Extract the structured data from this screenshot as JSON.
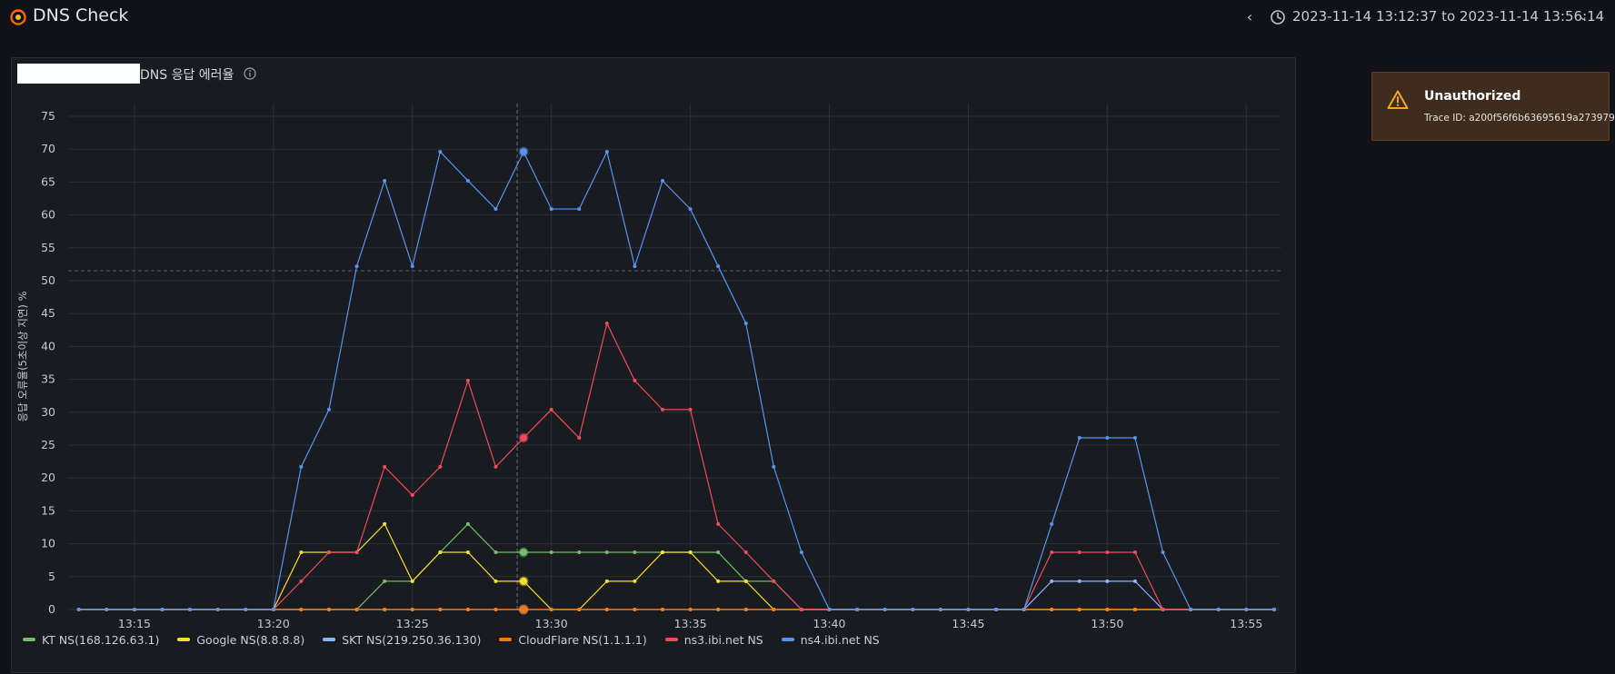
{
  "header": {
    "title": "DNS Check",
    "time_range": "2023-11-14 13:12:37 to 2023-11-14 13:56:14",
    "logo_icon": "grafana-logo",
    "back_icon": "chevron-left-icon",
    "clock_icon": "clock-icon",
    "dropdown_icon": "chevron-down-icon"
  },
  "panel": {
    "title": "DNS 응답 에러율",
    "info_icon": "info-icon"
  },
  "toast": {
    "title": "Unauthorized",
    "trace": "Trace ID: a200f56f6b63695619a273979",
    "icon": "warning-icon",
    "accent": "#f5a623"
  },
  "chart_data": {
    "type": "line",
    "ylabel": "응답 오류율(5초이상 지연) %",
    "ylim": [
      0,
      75
    ],
    "yticks": [
      0,
      5,
      10,
      15,
      20,
      25,
      30,
      35,
      40,
      45,
      50,
      55,
      60,
      65,
      70,
      75
    ],
    "xlim": [
      "13:12:37",
      "13:56:14"
    ],
    "xticks": [
      "13:15",
      "13:20",
      "13:25",
      "13:30",
      "13:35",
      "13:40",
      "13:45",
      "13:50",
      "13:55"
    ],
    "x": [
      "13:13",
      "13:14",
      "13:15",
      "13:16",
      "13:17",
      "13:18",
      "13:19",
      "13:20",
      "13:21",
      "13:22",
      "13:23",
      "13:24",
      "13:25",
      "13:26",
      "13:27",
      "13:28",
      "13:29",
      "13:30",
      "13:31",
      "13:32",
      "13:33",
      "13:34",
      "13:35",
      "13:36",
      "13:37",
      "13:38",
      "13:39",
      "13:40",
      "13:41",
      "13:42",
      "13:43",
      "13:44",
      "13:45",
      "13:46",
      "13:47",
      "13:48",
      "13:49",
      "13:50",
      "13:51",
      "13:52",
      "13:53",
      "13:54",
      "13:55",
      "13:56"
    ],
    "threshold": 51.5,
    "crosshair": "13:29",
    "grid": true,
    "legend_position": "bottom-left",
    "series": [
      {
        "name": "KT NS(168.126.63.1)",
        "color": "#73bf69",
        "values": [
          0,
          0,
          0,
          0,
          0,
          0,
          0,
          0,
          0,
          0,
          0,
          4.3,
          4.3,
          8.7,
          13,
          8.7,
          8.7,
          8.7,
          8.7,
          8.7,
          8.7,
          8.7,
          8.7,
          8.7,
          4.3,
          4.3,
          0,
          0,
          0,
          0,
          0,
          0,
          0,
          0,
          0,
          0,
          0,
          0,
          0,
          0,
          0,
          0,
          0,
          0
        ]
      },
      {
        "name": "Google NS(8.8.8.8)",
        "color": "#fade2a",
        "values": [
          0,
          0,
          0,
          0,
          0,
          0,
          0,
          0,
          8.7,
          8.7,
          8.7,
          13,
          4.3,
          8.7,
          8.7,
          4.3,
          4.3,
          0,
          0,
          4.3,
          4.3,
          8.7,
          8.7,
          4.3,
          4.3,
          0,
          0,
          0,
          0,
          0,
          0,
          0,
          0,
          0,
          0,
          0,
          0,
          0,
          0,
          0,
          0,
          0,
          0,
          0
        ]
      },
      {
        "name": "SKT NS(219.250.36.130)",
        "color": "#8ab8ff",
        "values": [
          0,
          0,
          0,
          0,
          0,
          0,
          0,
          0,
          0,
          0,
          0,
          0,
          0,
          0,
          0,
          0,
          0,
          0,
          0,
          0,
          0,
          0,
          0,
          0,
          0,
          0,
          0,
          0,
          0,
          0,
          0,
          0,
          0,
          0,
          0,
          4.3,
          4.3,
          4.3,
          4.3,
          0,
          0,
          0,
          0,
          0
        ]
      },
      {
        "name": "CloudFlare NS(1.1.1.1)",
        "color": "#ff780a",
        "values": [
          0,
          0,
          0,
          0,
          0,
          0,
          0,
          0,
          0,
          0,
          0,
          0,
          0,
          0,
          0,
          0,
          0,
          0,
          0,
          0,
          0,
          0,
          0,
          0,
          0,
          0,
          0,
          0,
          0,
          0,
          0,
          0,
          0,
          0,
          0,
          0,
          0,
          0,
          0,
          0,
          0,
          0,
          0,
          0
        ]
      },
      {
        "name": "ns3.ibi.net NS",
        "color": "#f2495c",
        "values": [
          0,
          0,
          0,
          0,
          0,
          0,
          0,
          0,
          4.3,
          8.7,
          8.7,
          21.7,
          17.4,
          21.7,
          34.8,
          21.7,
          26.1,
          30.4,
          26.1,
          43.5,
          34.8,
          30.4,
          30.4,
          13,
          8.7,
          4.3,
          0,
          0,
          0,
          0,
          0,
          0,
          0,
          0,
          0,
          8.7,
          8.7,
          8.7,
          8.7,
          0,
          0,
          0,
          0,
          0
        ]
      },
      {
        "name": "ns4.ibi.net NS",
        "color": "#5794f2",
        "values": [
          0,
          0,
          0,
          0,
          0,
          0,
          0,
          0,
          21.7,
          30.4,
          52.2,
          65.2,
          52.2,
          69.6,
          65.2,
          60.9,
          69.6,
          60.9,
          60.9,
          69.6,
          52.2,
          65.2,
          60.9,
          52.2,
          43.5,
          21.7,
          8.7,
          0,
          0,
          0,
          0,
          0,
          0,
          0,
          0,
          13,
          26.1,
          26.1,
          26.1,
          8.7,
          0,
          0,
          0,
          0
        ]
      }
    ]
  }
}
